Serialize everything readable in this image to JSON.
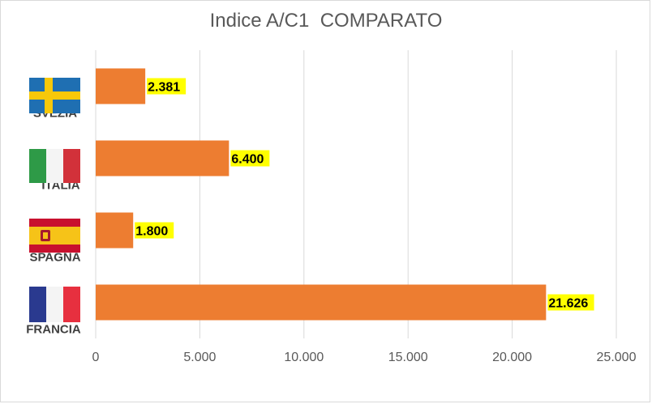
{
  "chart_data": {
    "type": "bar",
    "orientation": "horizontal",
    "title": "Indice A/C1  COMPARATO",
    "categories": [
      "SVEZIA",
      "ITALIA",
      "SPAGNA",
      "FRANCIA"
    ],
    "values": [
      2381,
      6400,
      1800,
      21626
    ],
    "value_labels": [
      "2.381",
      "6.400",
      "1.800",
      "21.626"
    ],
    "xlim": [
      0,
      25000
    ],
    "x_ticks": [
      0,
      5000,
      10000,
      15000,
      20000,
      25000
    ],
    "x_tick_labels": [
      "0",
      "5.000",
      "10.000",
      "15.000",
      "20.000",
      "25.000"
    ],
    "grid": "vertical",
    "legend": "none",
    "flags": [
      "sweden-flag",
      "italy-flag",
      "spain-flag",
      "france-flag"
    ],
    "colors": {
      "bar": "#ED7D31",
      "label_highlight": "#FFFF00",
      "grid": "#D9D9D9",
      "axis_text": "#595959"
    }
  }
}
